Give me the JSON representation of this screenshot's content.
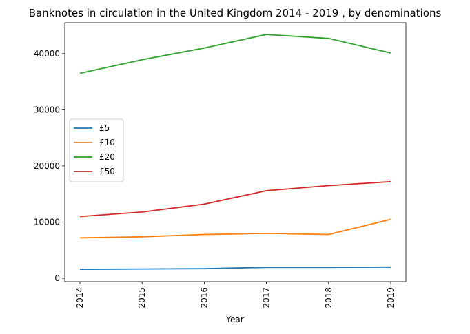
{
  "chart_data": {
    "type": "line",
    "title": "Banknotes in circulation in the United Kingdom 2014 - 2019 , by denominations",
    "xlabel": "Year",
    "ylabel": "",
    "categories": [
      "2014",
      "2015",
      "2016",
      "2017",
      "2018",
      "2019"
    ],
    "ylim": [
      -600,
      45500
    ],
    "yticks": [
      "0",
      "10000",
      "20000",
      "30000",
      "40000"
    ],
    "grid": false,
    "legend_position": "center-left",
    "series": [
      {
        "name": "£5",
        "color": "#1f77b4",
        "values": [
          1600,
          1650,
          1700,
          1950,
          1950,
          2000
        ]
      },
      {
        "name": "£10",
        "color": "#ff7f0e",
        "values": [
          7200,
          7400,
          7800,
          8000,
          7800,
          10500
        ]
      },
      {
        "name": "£20",
        "color": "#2ca02c",
        "values": [
          36500,
          38900,
          41000,
          43400,
          42700,
          40100
        ]
      },
      {
        "name": "£50",
        "color": "#d62728",
        "values": [
          11000,
          11800,
          13200,
          15600,
          16500,
          17200
        ]
      }
    ]
  }
}
